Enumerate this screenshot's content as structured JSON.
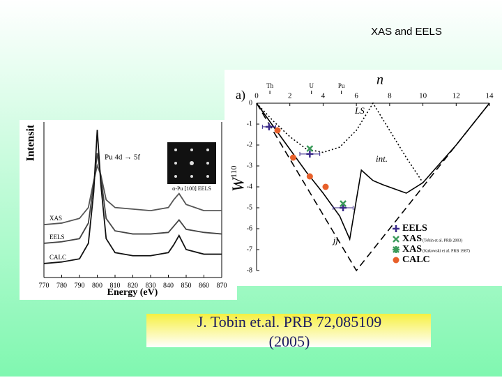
{
  "header": {
    "title": "XAS  and EELS"
  },
  "citation": {
    "lines": [
      "J. Tobin et.al. PRB 72,085109",
      "(2005)"
    ]
  },
  "chart_data": [
    {
      "type": "line",
      "x_label": "Energy (eV)",
      "y_label": "Intensit",
      "annotation": "Pu 4d → 5f",
      "inset_label": "α-Pu [100] EELS",
      "x": [
        770,
        780,
        790,
        795,
        798,
        800,
        802,
        805,
        810,
        820,
        830,
        840,
        843,
        846,
        850,
        860,
        870
      ],
      "xlim": [
        770,
        870
      ],
      "xticks": [
        770,
        780,
        790,
        800,
        810,
        820,
        830,
        840,
        850,
        860,
        870
      ],
      "ylim": [
        0,
        100
      ],
      "series": [
        {
          "name": "XAS",
          "color": "#555555",
          "values": [
            34,
            35,
            38,
            45,
            62,
            72,
            66,
            50,
            45,
            44,
            43,
            45,
            50,
            54,
            47,
            43,
            43
          ]
        },
        {
          "name": "EELS",
          "color": "#444444",
          "values": [
            22,
            23,
            25,
            35,
            60,
            80,
            65,
            38,
            30,
            28,
            28,
            29,
            33,
            37,
            31,
            29,
            28
          ]
        },
        {
          "name": "CALC",
          "color": "#111111",
          "values": [
            9,
            10,
            12,
            22,
            55,
            95,
            60,
            25,
            16,
            14,
            14,
            16,
            21,
            27,
            18,
            15,
            15
          ]
        }
      ]
    },
    {
      "type": "line",
      "panel_label": "a)",
      "x_label": "n",
      "y_label": "W",
      "y_label_sup": "110",
      "xlim": [
        0,
        14
      ],
      "xticks": [
        0,
        2,
        4,
        6,
        8,
        10,
        12,
        14
      ],
      "ylim": [
        -8,
        0
      ],
      "yticks": [
        0,
        -1,
        -2,
        -3,
        -4,
        -5,
        -6,
        -7,
        -8
      ],
      "elements": {
        "labels": [
          "Th",
          "U",
          "Pu"
        ],
        "x": [
          0.8,
          3.3,
          5.1
        ]
      },
      "series": [
        {
          "name": "LS",
          "style": "dotted",
          "color": "#000000",
          "x": [
            0,
            1,
            2,
            3,
            4,
            5,
            6,
            7,
            8,
            9,
            10
          ],
          "values": [
            0,
            -0.85,
            -1.6,
            -2.2,
            -2.35,
            -2.1,
            -1.3,
            0,
            -1.3,
            -2.6,
            -3.8
          ]
        },
        {
          "name": "int.",
          "style": "solid",
          "color": "#000000",
          "x": [
            0,
            1,
            2,
            3,
            4,
            5,
            5.6,
            6.3,
            7,
            7.6,
            9,
            10,
            12,
            14
          ],
          "values": [
            0,
            -1.1,
            -2.2,
            -3.3,
            -4.3,
            -5.4,
            -6.5,
            -3.2,
            -3.7,
            -3.9,
            -4.3,
            -3.8,
            -2,
            0
          ]
        },
        {
          "name": "jj",
          "style": "dashed",
          "color": "#000000",
          "x": [
            0,
            6,
            14
          ],
          "values": [
            0,
            -8,
            0
          ]
        },
        {
          "name": "EELS",
          "style": "markers",
          "marker": "plus",
          "color": "#3a2a8a",
          "x": [
            0.75,
            3.2,
            5.2
          ],
          "x_errors": [
            0.4,
            0.6,
            0.6
          ],
          "values": [
            -1.13,
            -2.43,
            -5.0
          ]
        },
        {
          "name": "XAS",
          "legend_note": "(Tobin et al. PRB 2003)",
          "style": "markers",
          "marker": "x",
          "color": "#3a9a5a",
          "x": [
            3.2,
            5.2
          ],
          "values": [
            -2.17,
            -4.8
          ]
        },
        {
          "name": "XAS",
          "legend_note": "(Kakowski et al. PRB 1987)",
          "style": "markers",
          "marker": "asterisk",
          "color": "#3a9a5a",
          "x": [],
          "values": []
        },
        {
          "name": "CALC",
          "style": "markers",
          "marker": "circle",
          "color": "#e8602a",
          "x": [
            1.26,
            2.2,
            3.2,
            4.15
          ],
          "values": [
            -1.3,
            -2.6,
            -3.5,
            -4.0
          ]
        }
      ]
    }
  ]
}
